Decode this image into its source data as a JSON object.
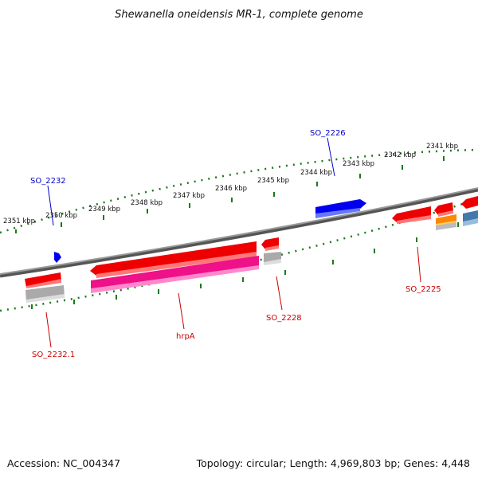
{
  "title": "Shewanella oneidensis MR-1, complete genome",
  "footer": {
    "accession": "Accession: NC_004347",
    "summary": "Topology: circular; Length: 4,969,803 bp; Genes: 4,448"
  },
  "scale_labels": [
    "2351 kbp",
    "2350 kbp",
    "2349 kbp",
    "2348 kbp",
    "2347 kbp",
    "2346 kbp",
    "2345 kbp",
    "2344 kbp",
    "2343 kbp",
    "2342 kbp",
    "2341 kbp"
  ],
  "gene_labels": {
    "so_2232": "SO_2232",
    "so_2226": "SO_2226",
    "so_2232_1": "SO_2232.1",
    "hrpa": "hrpA",
    "so_2228": "SO_2228",
    "so_2225": "SO_2225"
  },
  "colors": {
    "backbone": "#777777",
    "scale": "#1a7a1a",
    "forward_gene": "#0000ee",
    "reverse_gene": "#ee0000",
    "rna_gene": "#ee1188",
    "orange_gene": "#ff8800",
    "steelblue_gene": "#4477aa",
    "gray_feature": "#aaaaaa"
  }
}
